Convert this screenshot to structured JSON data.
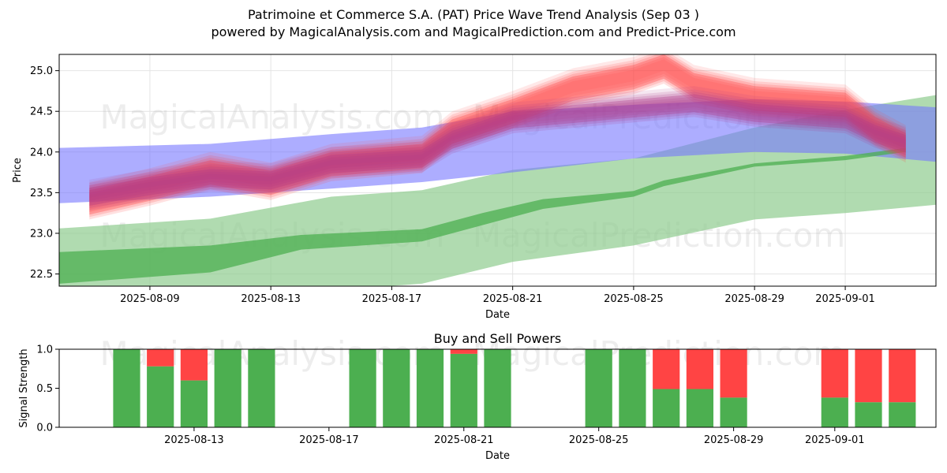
{
  "title_line1": "Patrimoine et Commerce S.A. (PAT) Price Wave Trend Analysis (Sep 03 )",
  "title_line2": "powered by MagicalAnalysis.com and MagicalPrediction.com and Predict-Price.com",
  "watermarks": [
    "MagicalAnalysis.com",
    "MagicalPrediction.com"
  ],
  "colors": {
    "red": "#ff4444",
    "blue": "#7777ff",
    "green": "#4caf50",
    "green_light": "#8fcc8f",
    "purple": "#b03a8a"
  },
  "chart_data": [
    {
      "type": "area",
      "title": "",
      "xlabel": "Date",
      "ylabel": "Price",
      "ylim": [
        22.35,
        25.2
      ],
      "xlim": [
        "2025-08-06",
        "2025-09-04"
      ],
      "grid": true,
      "x_ticks": [
        "2025-08-09",
        "2025-08-13",
        "2025-08-17",
        "2025-08-21",
        "2025-08-25",
        "2025-08-29",
        "2025-09-01"
      ],
      "y_ticks": [
        22.5,
        23.0,
        23.5,
        24.0,
        24.5,
        25.0
      ],
      "series": [
        {
          "kind": "band",
          "color": "green_light",
          "x": [
            "2025-08-06",
            "2025-08-11",
            "2025-08-15",
            "2025-08-18",
            "2025-08-21",
            "2025-08-25",
            "2025-08-29",
            "2025-09-01",
            "2025-09-04"
          ],
          "upper": [
            23.06,
            23.18,
            23.45,
            23.53,
            23.78,
            23.92,
            24.3,
            24.52,
            24.7
          ],
          "lower": [
            22.2,
            22.22,
            22.3,
            22.38,
            22.65,
            22.85,
            23.17,
            23.25,
            23.35
          ]
        },
        {
          "kind": "band",
          "color": "blue",
          "x": [
            "2025-08-06",
            "2025-08-11",
            "2025-08-15",
            "2025-08-18",
            "2025-08-21",
            "2025-08-25",
            "2025-08-29",
            "2025-09-01",
            "2025-09-04"
          ],
          "upper": [
            24.05,
            24.1,
            24.22,
            24.3,
            24.5,
            24.58,
            24.65,
            24.62,
            24.55
          ],
          "lower": [
            23.37,
            23.45,
            23.55,
            23.63,
            23.75,
            23.92,
            24.0,
            23.98,
            23.88
          ]
        },
        {
          "kind": "band",
          "color": "green",
          "x": [
            "2025-08-06",
            "2025-08-11",
            "2025-08-14",
            "2025-08-18",
            "2025-08-20",
            "2025-08-22",
            "2025-08-25",
            "2025-08-26",
            "2025-08-29",
            "2025-09-01",
            "2025-09-03"
          ],
          "upper": [
            22.77,
            22.85,
            22.98,
            23.05,
            23.25,
            23.42,
            23.52,
            23.65,
            23.86,
            23.95,
            24.05
          ],
          "lower": [
            22.38,
            22.52,
            22.8,
            22.9,
            23.1,
            23.3,
            23.45,
            23.58,
            23.82,
            23.9,
            24.0
          ]
        },
        {
          "kind": "wave",
          "color": "red",
          "x": [
            "2025-08-07",
            "2025-08-09",
            "2025-08-11",
            "2025-08-13",
            "2025-08-15",
            "2025-08-18",
            "2025-08-19",
            "2025-08-21",
            "2025-08-23",
            "2025-08-25",
            "2025-08-26",
            "2025-08-27",
            "2025-08-29",
            "2025-09-01",
            "2025-09-02",
            "2025-09-03"
          ],
          "y": [
            23.38,
            23.55,
            23.75,
            23.62,
            23.85,
            23.95,
            24.25,
            24.5,
            24.78,
            24.92,
            25.05,
            24.82,
            24.66,
            24.58,
            24.28,
            24.08
          ],
          "width": 0.3
        },
        {
          "kind": "wave",
          "color": "purple",
          "x": [
            "2025-08-07",
            "2025-08-09",
            "2025-08-11",
            "2025-08-13",
            "2025-08-15",
            "2025-08-18",
            "2025-08-19",
            "2025-08-21",
            "2025-08-27",
            "2025-08-29",
            "2025-09-01",
            "2025-09-02",
            "2025-09-03"
          ],
          "y": [
            23.45,
            23.58,
            23.68,
            23.65,
            23.85,
            23.92,
            24.15,
            24.4,
            24.6,
            24.48,
            24.4,
            24.22,
            24.1
          ],
          "width": 0.22
        }
      ]
    },
    {
      "type": "bar",
      "title": "Buy and Sell Powers",
      "xlabel": "Date",
      "ylabel": "Signal Strength",
      "ylim": [
        0,
        1.0
      ],
      "xlim": [
        "2025-08-09",
        "2025-09-04"
      ],
      "x_ticks": [
        "2025-08-13",
        "2025-08-17",
        "2025-08-21",
        "2025-08-25",
        "2025-08-29",
        "2025-09-01"
      ],
      "y_ticks": [
        "0.0",
        "0.5",
        "1.0"
      ],
      "buy_color": "green",
      "sell_color": "red",
      "dates": [
        "2025-08-11",
        "2025-08-12",
        "2025-08-13",
        "2025-08-14",
        "2025-08-15",
        "2025-08-18",
        "2025-08-19",
        "2025-08-20",
        "2025-08-21",
        "2025-08-22",
        "2025-08-25",
        "2025-08-26",
        "2025-08-27",
        "2025-08-28",
        "2025-08-29",
        "2025-09-01",
        "2025-09-02",
        "2025-09-03"
      ],
      "buy": [
        1.0,
        0.78,
        0.6,
        1.0,
        1.0,
        1.0,
        1.0,
        1.0,
        0.94,
        1.0,
        1.0,
        1.0,
        0.49,
        0.49,
        0.38,
        0.38,
        0.32,
        0.32
      ]
    }
  ]
}
